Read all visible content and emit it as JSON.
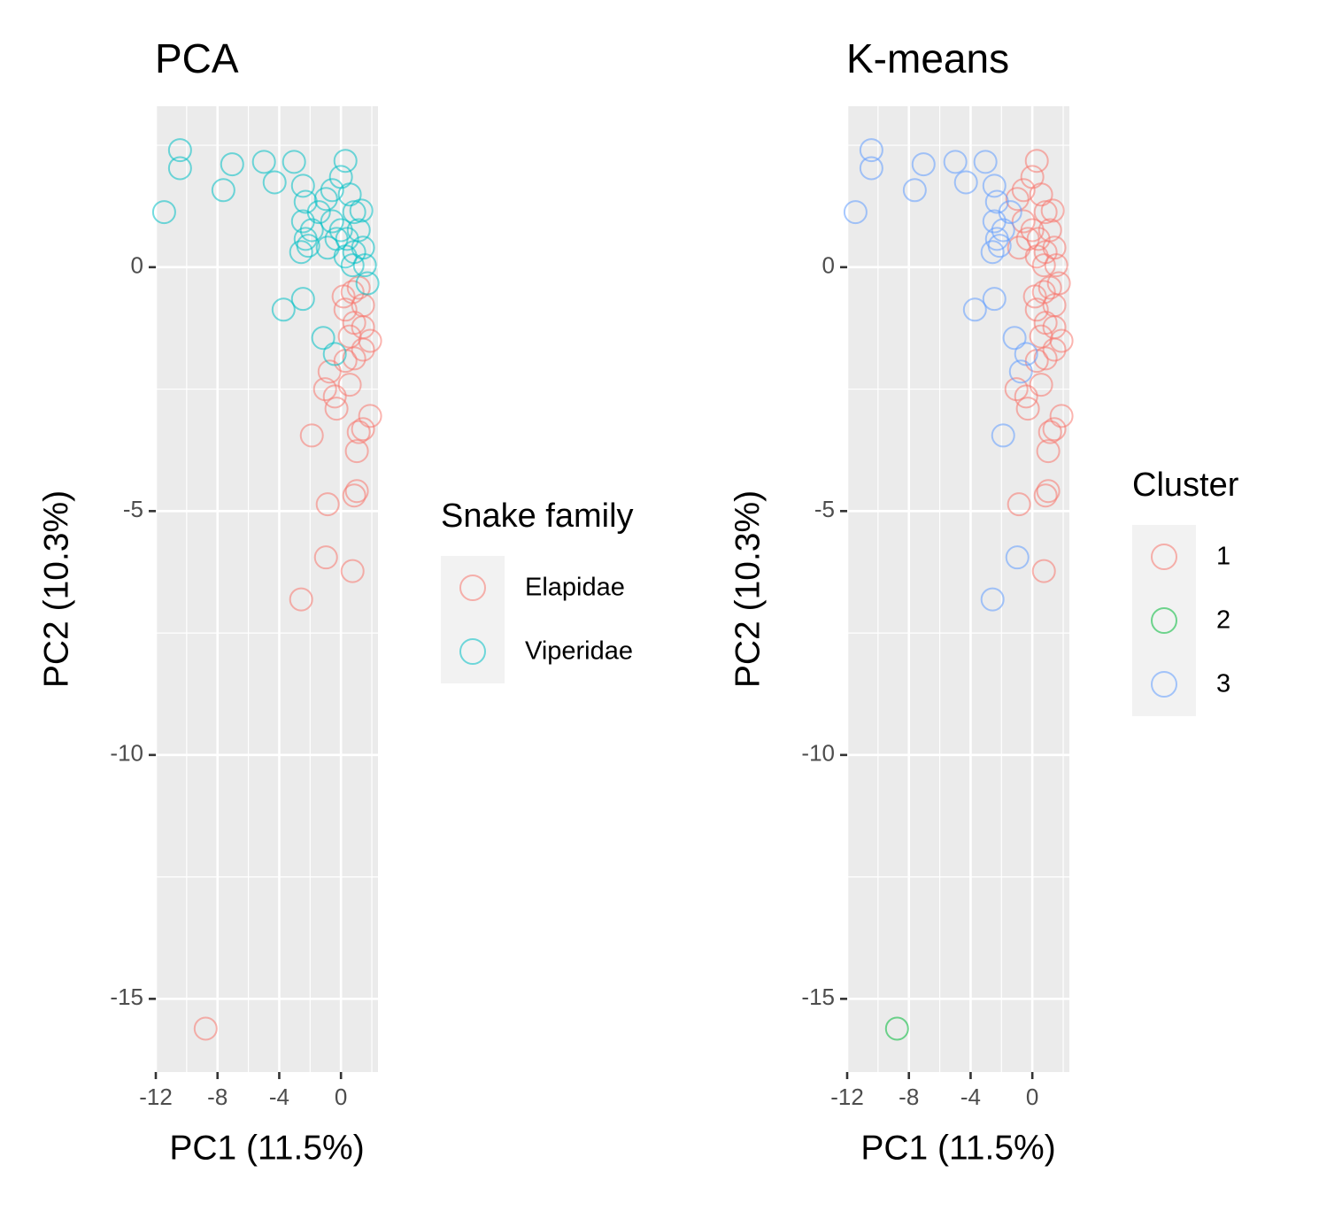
{
  "chart_data": [
    {
      "type": "scatter",
      "title": "PCA",
      "x_label": "PC1 (11.5%)",
      "y_label": "PC2 (10.3%)",
      "xlim": [
        -12,
        2.4
      ],
      "ylim": [
        -16.5,
        3.3
      ],
      "xticks": [
        -12,
        -8,
        -4,
        0
      ],
      "yticks": [
        -15,
        -10,
        -5,
        0
      ],
      "grid": true,
      "legend_title": "Snake family",
      "legend_position": "right",
      "series": [
        {
          "name": "Elapidae",
          "color": "#F8766D",
          "x": [
            -8.77,
            -2.58,
            -0.97,
            0.75,
            -0.86,
            0.86,
            1.03,
            -1.89,
            1.03,
            1.15,
            1.43,
            1.89,
            -0.29,
            -0.4,
            -1.03,
            -0.74,
            0.57,
            0.29,
            0.86,
            1.43,
            1.89,
            0.57,
            0.86,
            1.43,
            0.29,
            0.75,
            1.15,
            0.17,
            1.43
          ],
          "values": [
            -15.61,
            -6.81,
            -5.95,
            -6.23,
            -4.86,
            -4.68,
            -4.59,
            -3.45,
            -3.77,
            -3.38,
            -3.32,
            -3.05,
            -2.9,
            -2.65,
            -2.5,
            -2.14,
            -2.41,
            -1.92,
            -1.87,
            -1.69,
            -1.51,
            -1.42,
            -1.14,
            -1.23,
            -0.87,
            -0.51,
            -0.42,
            -0.6,
            -0.78
          ]
        },
        {
          "name": "Viperidae",
          "color": "#00BFC4",
          "x": [
            -11.46,
            -10.43,
            -10.43,
            -7.62,
            -7.05,
            -4.99,
            -4.3,
            -3.04,
            -2.46,
            -2.29,
            -2.46,
            -2.29,
            -2.58,
            -2.12,
            -1.89,
            -1.43,
            -0.97,
            -0.57,
            0,
            0.29,
            0.57,
            0.86,
            1.15,
            1.43,
            1.55,
            1.72,
            0.29,
            -0.29,
            0.75,
            1.32,
            -2.46,
            -3.72,
            -1.15,
            -0.4,
            -0.57,
            0,
            0.4,
            0.86,
            -0.86
          ],
          "values": [
            1.13,
            2.4,
            2.03,
            1.58,
            2.11,
            2.16,
            1.74,
            2.16,
            1.67,
            1.34,
            0.94,
            0.58,
            0.31,
            0.44,
            0.76,
            1.13,
            1.4,
            1.58,
            1.85,
            2.18,
            1.49,
            1.13,
            0.76,
            0.4,
            0.04,
            -0.33,
            0.22,
            0.58,
            0.04,
            1.16,
            -0.65,
            -0.87,
            -1.45,
            -1.78,
            0.94,
            0.76,
            0.58,
            0.31,
            0.4
          ]
        }
      ]
    },
    {
      "type": "scatter",
      "title": "K-means",
      "x_label": "PC1 (11.5%)",
      "y_label": "PC2 (10.3%)",
      "xlim": [
        -12,
        2.4
      ],
      "ylim": [
        -16.5,
        3.3
      ],
      "xticks": [
        -12,
        -8,
        -4,
        0
      ],
      "yticks": [
        -15,
        -10,
        -5,
        0
      ],
      "grid": true,
      "legend_title": "Cluster",
      "legend_position": "right",
      "series": [
        {
          "name": "1",
          "color": "#F8766D",
          "x": [
            -0.97,
            -0.57,
            0,
            0.29,
            0.57,
            0.86,
            1.15,
            1.43,
            1.55,
            1.72,
            0.29,
            -0.29,
            0.75,
            1.32,
            -0.57,
            0,
            0.4,
            0.86,
            -0.86,
            0.75,
            -0.86,
            0.86,
            1.03,
            1.03,
            1.15,
            1.43,
            1.89,
            -0.29,
            -0.4,
            -1.03,
            0.57,
            0.29,
            0.86,
            1.43,
            1.89,
            0.57,
            0.86,
            1.43,
            0.29,
            0.75,
            1.15,
            0.17,
            1.43
          ],
          "values": [
            1.4,
            1.58,
            1.85,
            2.18,
            1.49,
            1.13,
            0.76,
            0.4,
            0.04,
            -0.33,
            0.22,
            0.58,
            0.04,
            1.16,
            0.94,
            0.76,
            0.58,
            0.31,
            0.4,
            -6.23,
            -4.86,
            -4.68,
            -4.59,
            -3.77,
            -3.38,
            -3.32,
            -3.05,
            -2.9,
            -2.65,
            -2.5,
            -2.41,
            -1.92,
            -1.87,
            -1.69,
            -1.51,
            -1.42,
            -1.14,
            -1.23,
            -0.87,
            -0.51,
            -0.42,
            -0.6,
            -0.78
          ]
        },
        {
          "name": "2",
          "color": "#00BA38",
          "x": [
            -8.77
          ],
          "values": [
            -15.61
          ]
        },
        {
          "name": "3",
          "color": "#619CFF",
          "x": [
            -11.46,
            -10.43,
            -10.43,
            -7.62,
            -7.05,
            -4.99,
            -4.3,
            -3.04,
            -2.46,
            -2.29,
            -2.46,
            -2.29,
            -2.58,
            -2.12,
            -1.89,
            -1.43,
            -2.46,
            -3.72,
            -1.15,
            -0.4,
            -0.74,
            -1.89,
            -0.97,
            -2.58
          ],
          "values": [
            1.13,
            2.4,
            2.03,
            1.58,
            2.11,
            2.16,
            1.74,
            2.16,
            1.67,
            1.34,
            0.94,
            0.58,
            0.31,
            0.44,
            0.76,
            1.13,
            -0.65,
            -0.87,
            -1.45,
            -1.78,
            -2.14,
            -3.45,
            -5.95,
            -6.81
          ]
        }
      ]
    }
  ]
}
